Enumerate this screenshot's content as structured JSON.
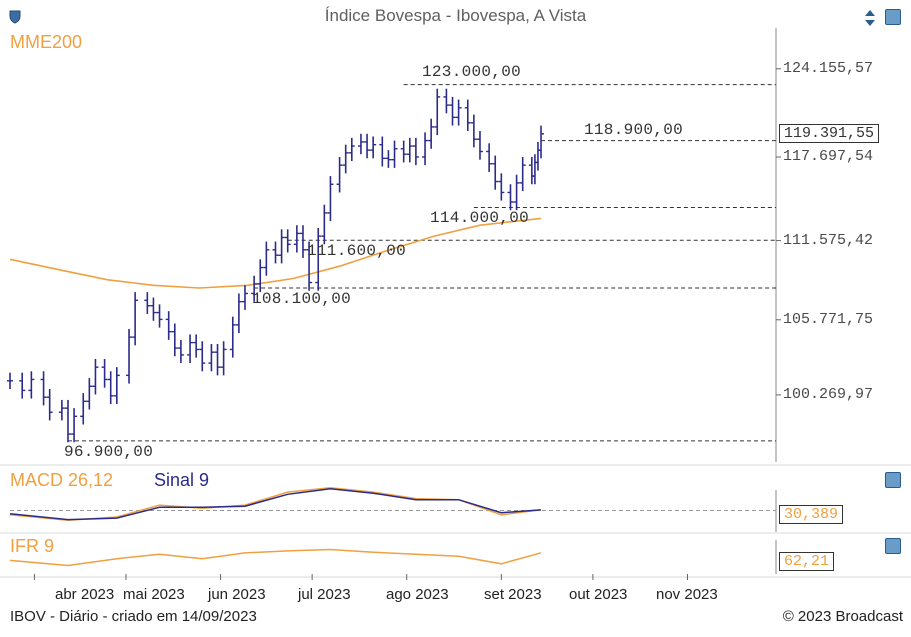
{
  "header": {
    "title": "Índice Bovespa - Ibovespa, A Vista"
  },
  "price_panel": {
    "label": "MME200",
    "y_ticks": [
      "124.155,57",
      "117.697,54",
      "111.575,42",
      "105.771,75",
      "100.269,97"
    ],
    "current_value": "119.391,55",
    "levels": [
      "123.000,00",
      "118.900,00",
      "114.000,00",
      "111.600,00",
      "108.100,00",
      "96.900,00"
    ]
  },
  "macd_panel": {
    "label": "MACD 26,12",
    "signal_label": "Sinal 9",
    "current_value": "30,389"
  },
  "ifr_panel": {
    "label": "IFR 9",
    "current_value": "62,21"
  },
  "x_axis": {
    "months": [
      "abr 2023",
      "mai 2023",
      "jun 2023",
      "jul 2023",
      "ago 2023",
      "set 2023",
      "out 2023",
      "nov 2023"
    ]
  },
  "footer": {
    "left": "IBOV - Diário - criado em 14/09/2023",
    "right": "© 2023 Broadcast"
  },
  "colors": {
    "price_bars": "#2b2b8a",
    "mme200": "#f0a040",
    "macd": "#f0a040",
    "signal": "#2b2b8a",
    "ifr": "#f0a040"
  },
  "icons": [
    "shield-icon",
    "scroll-arrows-icon",
    "panel-settings-icon"
  ],
  "chart_data": {
    "type": "ohlc",
    "title": "Índice Bovespa - Ibovespa, A Vista",
    "x_range": [
      "2023-03-24",
      "2023-11-30"
    ],
    "ylim": [
      95500,
      127000
    ],
    "ylog": false,
    "grid": false,
    "right_axis_ticks": [
      124155.57,
      117697.54,
      111575.42,
      105771.75,
      100269.97
    ],
    "series": [
      {
        "name": "MME200",
        "points": [
          [
            "2023-03-24",
            110200
          ],
          [
            "2023-04-10",
            109400
          ],
          [
            "2023-04-25",
            108700
          ],
          [
            "2023-05-10",
            108300
          ],
          [
            "2023-05-25",
            108100
          ],
          [
            "2023-06-10",
            108300
          ],
          [
            "2023-06-25",
            108800
          ],
          [
            "2023-07-10",
            109700
          ],
          [
            "2023-07-25",
            110800
          ],
          [
            "2023-08-10",
            111900
          ],
          [
            "2023-08-25",
            112700
          ],
          [
            "2023-09-14",
            113200
          ]
        ]
      },
      {
        "name": "IBOV",
        "close_points": [
          [
            "2023-03-24",
            101300
          ],
          [
            "2023-03-28",
            100600
          ],
          [
            "2023-03-31",
            101400
          ],
          [
            "2023-04-04",
            100100
          ],
          [
            "2023-04-06",
            99000
          ],
          [
            "2023-04-10",
            99300
          ],
          [
            "2023-04-12",
            97400
          ],
          [
            "2023-04-14",
            98700
          ],
          [
            "2023-04-17",
            99800
          ],
          [
            "2023-04-19",
            100900
          ],
          [
            "2023-04-21",
            102300
          ],
          [
            "2023-04-24",
            101400
          ],
          [
            "2023-04-26",
            100200
          ],
          [
            "2023-04-28",
            101700
          ],
          [
            "2023-05-02",
            104500
          ],
          [
            "2023-05-04",
            107200
          ],
          [
            "2023-05-08",
            106800
          ],
          [
            "2023-05-10",
            106300
          ],
          [
            "2023-05-12",
            105800
          ],
          [
            "2023-05-15",
            104900
          ],
          [
            "2023-05-17",
            103700
          ],
          [
            "2023-05-19",
            103200
          ],
          [
            "2023-05-22",
            104100
          ],
          [
            "2023-05-24",
            103600
          ],
          [
            "2023-05-26",
            102600
          ],
          [
            "2023-05-29",
            103400
          ],
          [
            "2023-05-31",
            102300
          ],
          [
            "2023-06-02",
            103600
          ],
          [
            "2023-06-05",
            105400
          ],
          [
            "2023-06-07",
            107100
          ],
          [
            "2023-06-09",
            107700
          ],
          [
            "2023-06-12",
            108400
          ],
          [
            "2023-06-14",
            109600
          ],
          [
            "2023-06-16",
            110900
          ],
          [
            "2023-06-19",
            110500
          ],
          [
            "2023-06-21",
            111800
          ],
          [
            "2023-06-23",
            111300
          ],
          [
            "2023-06-26",
            112100
          ],
          [
            "2023-06-28",
            110900
          ],
          [
            "2023-06-30",
            108500
          ],
          [
            "2023-07-03",
            111900
          ],
          [
            "2023-07-05",
            113600
          ],
          [
            "2023-07-07",
            115700
          ],
          [
            "2023-07-10",
            117100
          ],
          [
            "2023-07-12",
            118000
          ],
          [
            "2023-07-14",
            118500
          ],
          [
            "2023-07-17",
            118800
          ],
          [
            "2023-07-19",
            118200
          ],
          [
            "2023-07-21",
            118600
          ],
          [
            "2023-07-24",
            117600
          ],
          [
            "2023-07-26",
            117500
          ],
          [
            "2023-07-28",
            118300
          ],
          [
            "2023-07-31",
            117900
          ],
          [
            "2023-08-02",
            118500
          ],
          [
            "2023-08-04",
            117700
          ],
          [
            "2023-08-07",
            118900
          ],
          [
            "2023-08-09",
            119900
          ],
          [
            "2023-08-11",
            122100
          ],
          [
            "2023-08-14",
            121500
          ],
          [
            "2023-08-16",
            120600
          ],
          [
            "2023-08-18",
            121300
          ],
          [
            "2023-08-21",
            120200
          ],
          [
            "2023-08-23",
            119000
          ],
          [
            "2023-08-25",
            118100
          ],
          [
            "2023-08-28",
            117200
          ],
          [
            "2023-08-30",
            115900
          ],
          [
            "2023-09-01",
            115100
          ],
          [
            "2023-09-04",
            114400
          ],
          [
            "2023-09-06",
            115800
          ],
          [
            "2023-09-08",
            117100
          ],
          [
            "2023-09-11",
            116300
          ],
          [
            "2023-09-12",
            117300
          ],
          [
            "2023-09-13",
            118200
          ],
          [
            "2023-09-14",
            119391.55
          ]
        ]
      }
    ],
    "price_levels": [
      {
        "label": "123.000,00",
        "value": 123000
      },
      {
        "label": "118.900,00",
        "value": 118900
      },
      {
        "label": "114.000,00",
        "value": 114000
      },
      {
        "label": "111.600,00",
        "value": 111600
      },
      {
        "label": "108.100,00",
        "value": 108100
      },
      {
        "label": "96.900,00",
        "value": 96900
      }
    ],
    "current_value": 119391.55,
    "subcharts": [
      {
        "name": "MACD 26,12",
        "type": "line",
        "ylim": [
          -900,
          1500
        ],
        "series": [
          {
            "name": "MACD 26,12",
            "points": [
              [
                "2023-03-24",
                -200
              ],
              [
                "2023-04-12",
                -450
              ],
              [
                "2023-04-28",
                -300
              ],
              [
                "2023-05-12",
                250
              ],
              [
                "2023-05-26",
                100
              ],
              [
                "2023-06-09",
                250
              ],
              [
                "2023-06-23",
                850
              ],
              [
                "2023-07-07",
                1050
              ],
              [
                "2023-07-21",
                850
              ],
              [
                "2023-08-04",
                550
              ],
              [
                "2023-08-18",
                500
              ],
              [
                "2023-09-01",
                -200
              ],
              [
                "2023-09-14",
                30.389
              ]
            ]
          },
          {
            "name": "Sinal 9",
            "points": [
              [
                "2023-03-24",
                -150
              ],
              [
                "2023-04-12",
                -420
              ],
              [
                "2023-04-28",
                -350
              ],
              [
                "2023-05-12",
                150
              ],
              [
                "2023-05-26",
                150
              ],
              [
                "2023-06-09",
                200
              ],
              [
                "2023-06-23",
                750
              ],
              [
                "2023-07-07",
                1000
              ],
              [
                "2023-07-21",
                800
              ],
              [
                "2023-08-04",
                500
              ],
              [
                "2023-08-18",
                500
              ],
              [
                "2023-09-01",
                -100
              ],
              [
                "2023-09-14",
                30
              ]
            ]
          }
        ],
        "current_value": 30.389
      },
      {
        "name": "IFR 9",
        "type": "line",
        "ylim": [
          0,
          100
        ],
        "series": [
          {
            "name": "IFR 9",
            "points": [
              [
                "2023-03-24",
                40
              ],
              [
                "2023-04-12",
                25
              ],
              [
                "2023-04-28",
                45
              ],
              [
                "2023-05-12",
                58
              ],
              [
                "2023-05-26",
                45
              ],
              [
                "2023-06-09",
                62
              ],
              [
                "2023-06-23",
                68
              ],
              [
                "2023-07-07",
                72
              ],
              [
                "2023-07-21",
                64
              ],
              [
                "2023-08-04",
                58
              ],
              [
                "2023-08-18",
                52
              ],
              [
                "2023-09-01",
                30
              ],
              [
                "2023-09-14",
                62.21
              ]
            ]
          }
        ],
        "current_value": 62.21
      }
    ]
  }
}
